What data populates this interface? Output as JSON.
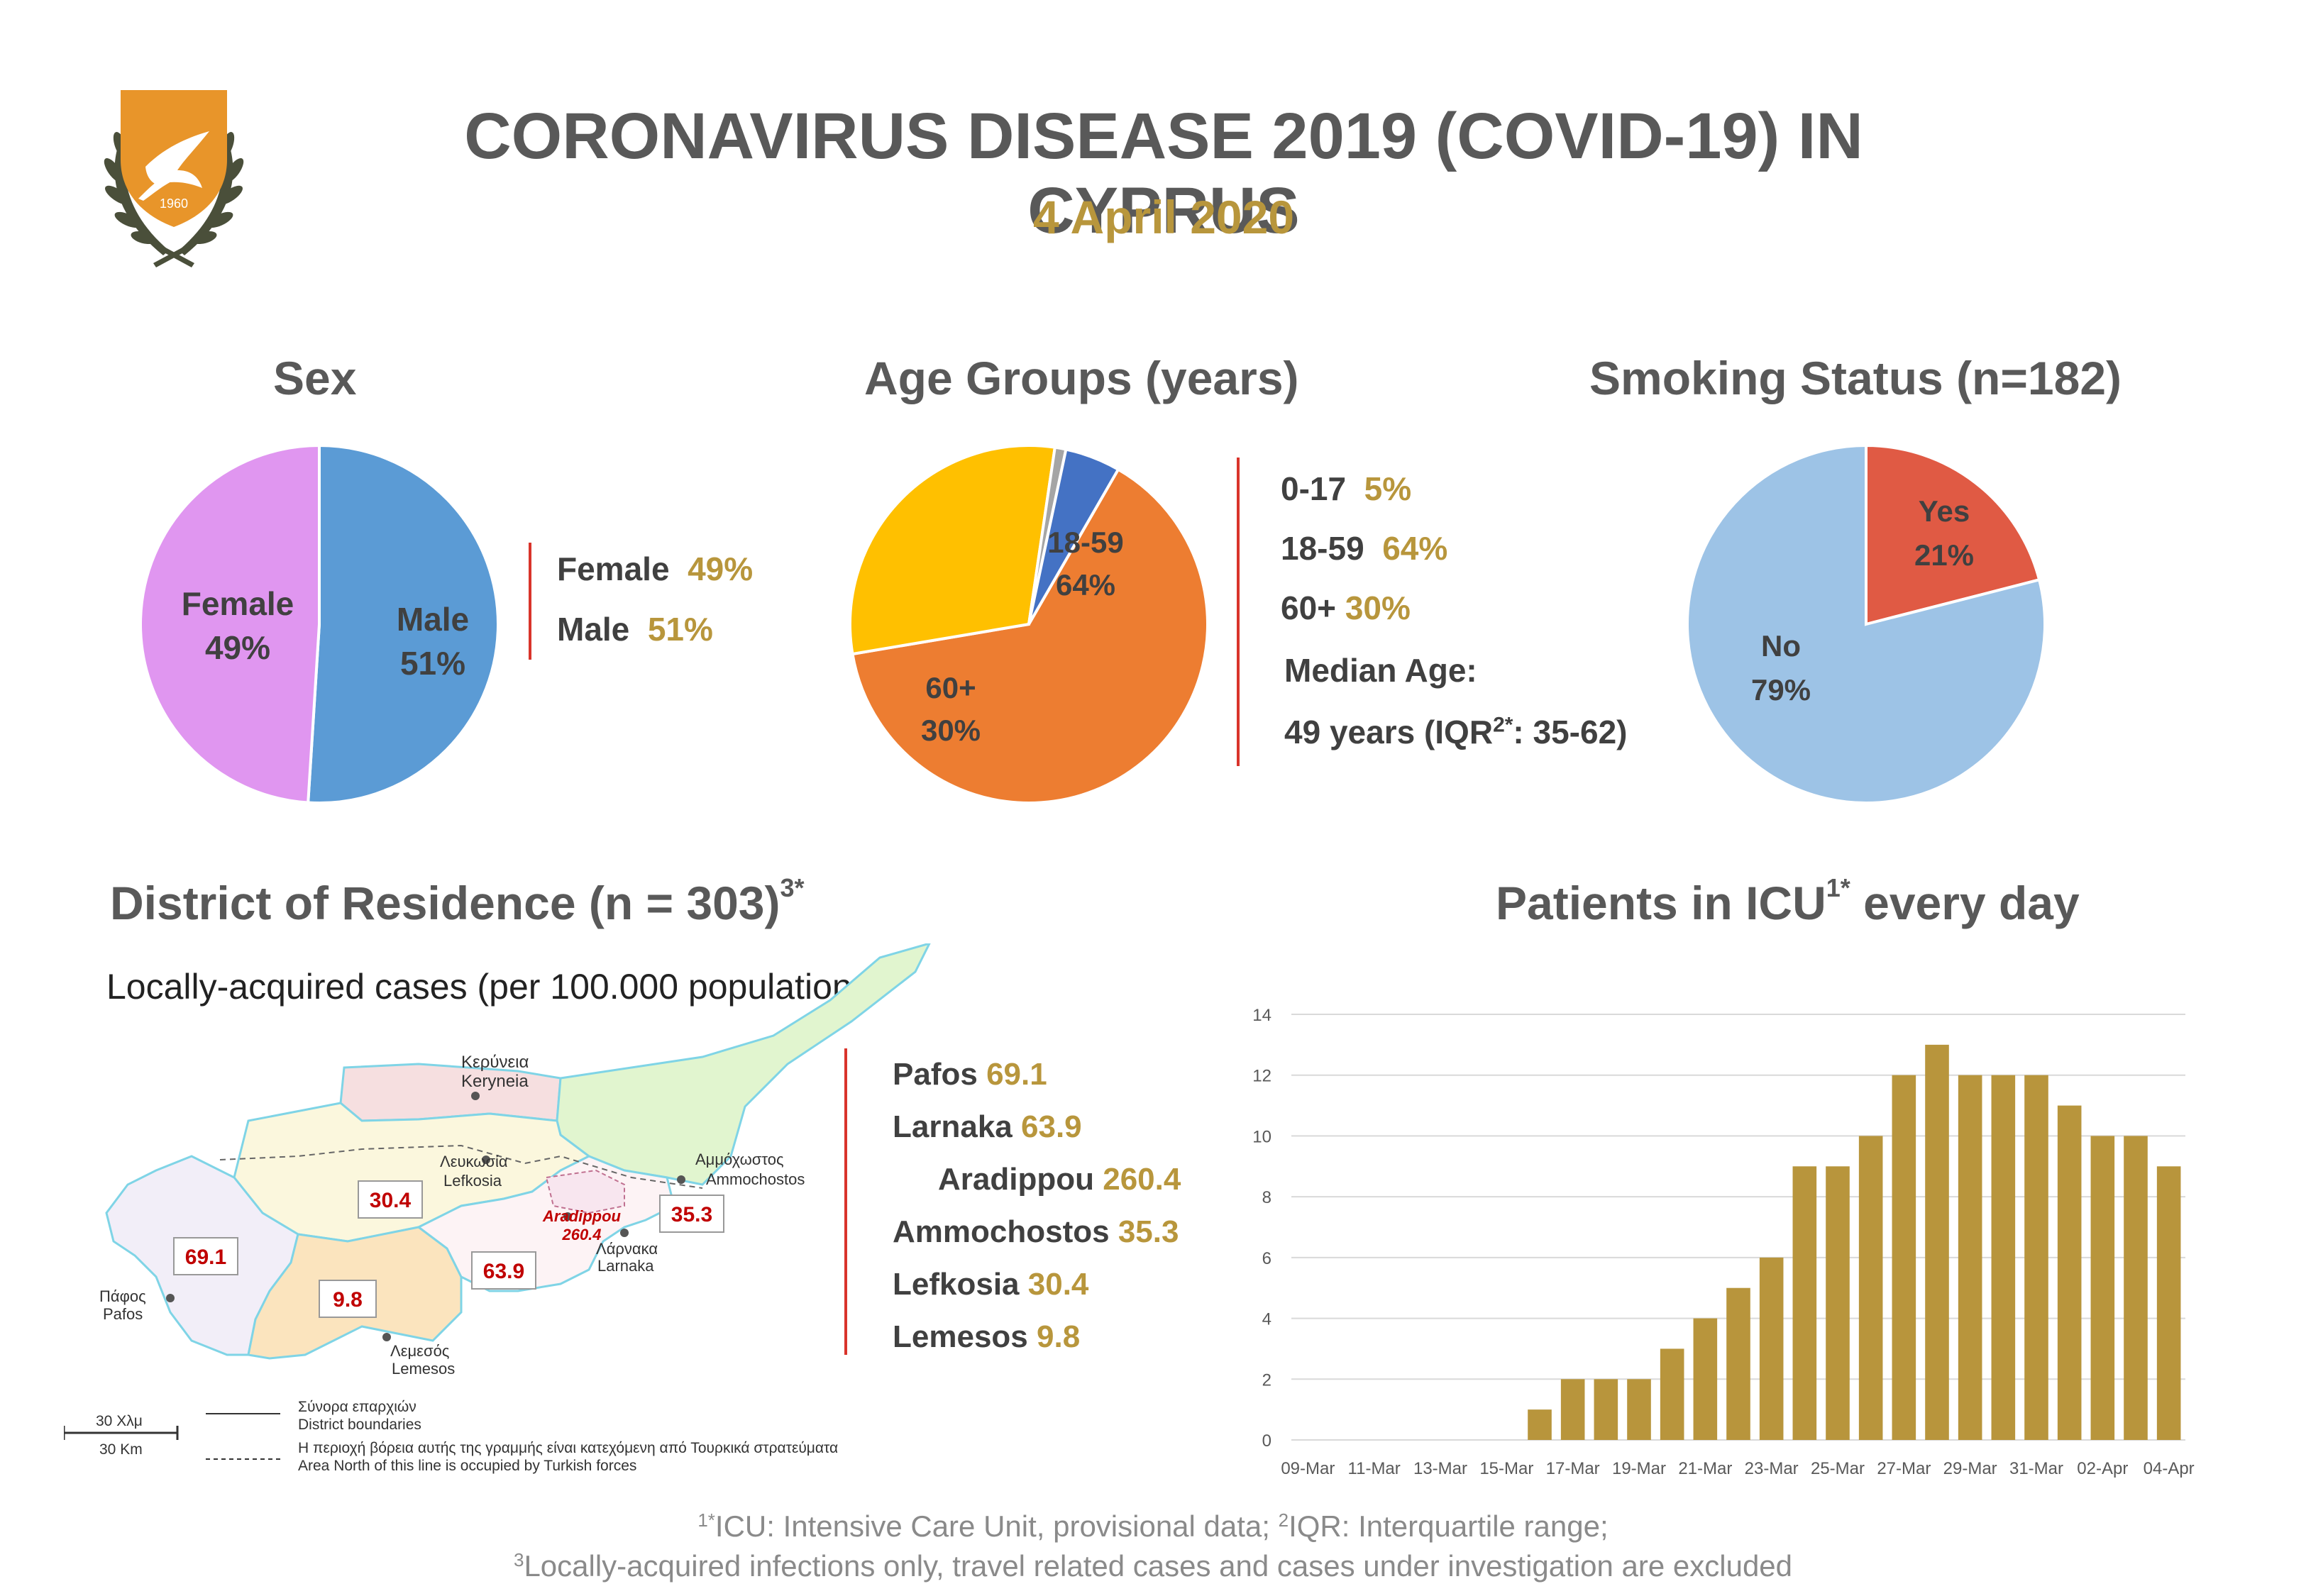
{
  "header": {
    "title": "CORONAVIRUS DISEASE 2019 (COVID-19) IN CYPRUS",
    "date": "4 April 2020",
    "emblem_year": "1960"
  },
  "sex": {
    "title": "Sex",
    "legend": [
      {
        "label": "Female",
        "value": "49%"
      },
      {
        "label": "Male",
        "value": "51%"
      }
    ],
    "pie_labels": [
      {
        "name": "Female",
        "value": "49%"
      },
      {
        "name": "Male",
        "value": "51%"
      }
    ]
  },
  "age": {
    "title": "Age Groups (years)",
    "legend": [
      {
        "label": "0-17",
        "value": "5%"
      },
      {
        "label": "18-59",
        "value": "64%"
      },
      {
        "label": "60+",
        "value": "30%"
      }
    ],
    "median_label": "Median Age:",
    "median_text_a": "49 years (IQR",
    "median_sup": "2*",
    "median_text_b": ": 35-62)",
    "pie_labels": [
      {
        "name": "18-59",
        "value": "64%"
      },
      {
        "name": "60+",
        "value": "30%"
      }
    ]
  },
  "smoking": {
    "title": "Smoking Status (n=182)",
    "pie_labels": [
      {
        "name": "Yes",
        "value": "21%"
      },
      {
        "name": "No",
        "value": "79%"
      }
    ]
  },
  "district": {
    "title": "District of Residence (n = 303)",
    "title_sup": "3*",
    "subtitle": "Locally-acquired cases (per 100.000 population",
    "list": [
      {
        "name": "Pafos",
        "value": "69.1"
      },
      {
        "name": "Larnaka",
        "value": "63.9"
      },
      {
        "name": "Aradippou",
        "value": "260.4"
      },
      {
        "name": "Ammochostos",
        "value": "35.3"
      },
      {
        "name": "Lefkosia",
        "value": "30.4"
      },
      {
        "name": "Lemesos",
        "value": "9.8"
      }
    ],
    "map": {
      "places": {
        "keryneia_gr": "Κερύνεια",
        "keryneia_en": "Keryneia",
        "lefkosia_gr": "Λευκωσία",
        "lefkosia_en": "Lefkosia",
        "ammochostos_gr": "Αμμόχωστος",
        "ammochostos_en": "Ammochostos",
        "larnaka_gr": "Λάρνακα",
        "larnaka_en": "Larnaka",
        "lemesos_gr": "Λεμεσός",
        "lemesos_en": "Lemesos",
        "pafos_gr": "Πάφος",
        "pafos_en": "Pafos",
        "aradippou": "Aradippou"
      },
      "values": {
        "lefkosia": "30.4",
        "pafos": "69.1",
        "lemesos": "9.8",
        "larnaka": "63.9",
        "ammochostos": "35.3",
        "aradippou": "260.4"
      },
      "scale_gr": "30 Χλμ",
      "scale_en": "30 Km",
      "legend_boundary_gr": "Σύνορα επαρχιών",
      "legend_boundary_en": "District boundaries",
      "legend_occupied_gr": "Η περιοχή βόρεια αυτής της γραμμής είναι κατεχόμενη από Τουρκικά στρατεύματα",
      "legend_occupied_en": "Area North of this line is occupied by Turkish forces"
    }
  },
  "icu": {
    "title_a": "Patients in ICU",
    "title_sup": "1*",
    "title_b": " every day"
  },
  "colors": {
    "female": "#e096f0",
    "male": "#5b9bd5",
    "age_0_17": "#4472c4",
    "age_unknown": "#a5a5a5",
    "age_18_59": "#ed7d31",
    "age_60": "#ffc000",
    "smoke_yes": "#e05a44",
    "smoke_no": "#9dc3e6",
    "bar": "#b8953c",
    "accent_gold": "#b8963c",
    "red_rule": "#d9342b"
  },
  "chart_data": [
    {
      "type": "pie",
      "title": "Sex",
      "labels": [
        "Female",
        "Male"
      ],
      "values": [
        49,
        51
      ]
    },
    {
      "type": "pie",
      "title": "Age Groups (years)",
      "labels": [
        "18-59",
        "60+",
        "",
        "0-17"
      ],
      "values": [
        64,
        30,
        1,
        5
      ]
    },
    {
      "type": "pie",
      "title": "Smoking Status (n=182)",
      "labels": [
        "Yes",
        "No"
      ],
      "values": [
        21,
        79
      ]
    },
    {
      "type": "bar",
      "title": "Patients in ICU every day",
      "categories": [
        "09-Mar",
        "10-Mar",
        "11-Mar",
        "12-Mar",
        "13-Mar",
        "14-Mar",
        "15-Mar",
        "16-Mar",
        "17-Mar",
        "18-Mar",
        "19-Mar",
        "20-Mar",
        "21-Mar",
        "22-Mar",
        "23-Mar",
        "24-Mar",
        "25-Mar",
        "26-Mar",
        "27-Mar",
        "28-Mar",
        "29-Mar",
        "30-Mar",
        "31-Mar",
        "01-Apr",
        "02-Apr",
        "03-Apr",
        "04-Apr"
      ],
      "tick_labels": [
        "09-Mar",
        "11-Mar",
        "13-Mar",
        "15-Mar",
        "17-Mar",
        "19-Mar",
        "21-Mar",
        "23-Mar",
        "25-Mar",
        "27-Mar",
        "29-Mar",
        "31-Mar",
        "02-Apr",
        "04-Apr"
      ],
      "values": [
        0,
        0,
        0,
        0,
        0,
        0,
        0,
        1,
        2,
        2,
        2,
        3,
        4,
        5,
        6,
        9,
        9,
        10,
        12,
        13,
        12,
        12,
        12,
        11,
        10,
        10,
        9
      ],
      "ylim": [
        0,
        14
      ],
      "yticks": [
        0,
        2,
        4,
        6,
        8,
        10,
        12,
        14
      ],
      "grid": true
    }
  ],
  "footnote": {
    "line1_sup1": "1*",
    "line1_a": "ICU: Intensive Care Unit, provisional data; ",
    "line1_sup2": "2",
    "line1_b": "IQR: Interquartile range;",
    "line2_sup": "3",
    "line2": "Locally-acquired infections only, travel related cases and cases under investigation are excluded"
  }
}
